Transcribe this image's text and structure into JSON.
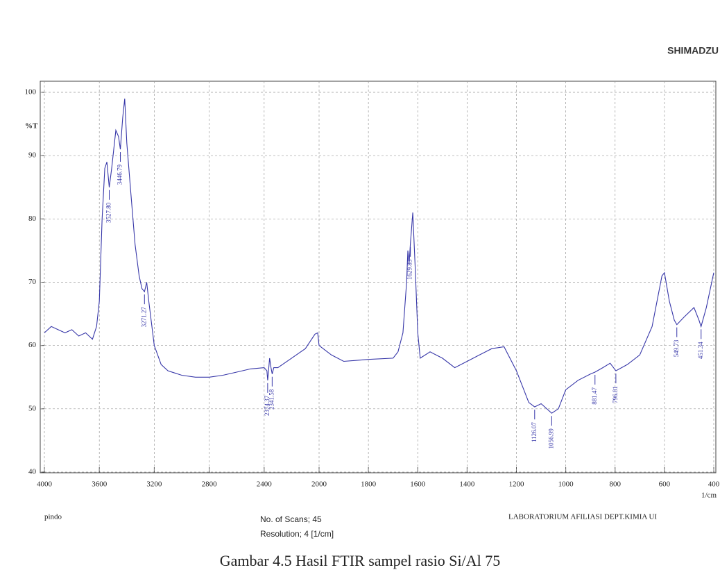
{
  "chart_data": {
    "type": "line",
    "brand": "SHIMADZU",
    "ylabel": "%T",
    "xlabel": "1/cm",
    "xlim": [
      4000,
      400
    ],
    "x_scale_break": 2000,
    "xticks": [
      4000,
      3600,
      3200,
      2800,
      2400,
      2000,
      1800,
      1600,
      1400,
      1200,
      1000,
      800,
      600,
      400
    ],
    "ylim": [
      40,
      100
    ],
    "yticks": [
      40,
      50,
      60,
      70,
      80,
      90,
      100
    ],
    "grid": true,
    "series": [
      {
        "color": "#3636a8",
        "x": [
          4000,
          3950,
          3900,
          3850,
          3800,
          3750,
          3700,
          3650,
          3620,
          3600,
          3580,
          3560,
          3545,
          3527.8,
          3510,
          3480,
          3460,
          3446.79,
          3430,
          3415,
          3400,
          3370,
          3340,
          3310,
          3290,
          3271.27,
          3255,
          3240,
          3200,
          3150,
          3100,
          3000,
          2900,
          2800,
          2700,
          2600,
          2500,
          2400,
          2380,
          2374.37,
          2360,
          2350,
          2341.58,
          2330,
          2300,
          2200,
          2100,
          2030,
          2010,
          2000,
          1950,
          1900,
          1800,
          1700,
          1680,
          1660,
          1645,
          1640,
          1635,
          1629.83,
          1620,
          1610,
          1600,
          1590,
          1550,
          1500,
          1450,
          1400,
          1350,
          1300,
          1250,
          1200,
          1150,
          1126.07,
          1100,
          1056.99,
          1030,
          1000,
          950,
          900,
          881.47,
          850,
          820,
          796.81,
          750,
          700,
          650,
          610,
          600,
          580,
          560,
          549.73,
          520,
          480,
          460,
          451.34,
          430,
          400
        ],
        "values": [
          62,
          63,
          62.5,
          62,
          62.5,
          61.5,
          62,
          61,
          63,
          67,
          80,
          88,
          89,
          85,
          88,
          94,
          93,
          91,
          96,
          99,
          92,
          84,
          76,
          71,
          69,
          68.5,
          70,
          67,
          60,
          57,
          56,
          55.3,
          55,
          55,
          55.3,
          55.8,
          56.3,
          56.5,
          56,
          54.5,
          58,
          56.5,
          55.5,
          56.5,
          56.5,
          58,
          59.5,
          61.8,
          62,
          60,
          58.5,
          57.5,
          57.8,
          58,
          59,
          62,
          70,
          75,
          73,
          76,
          81,
          72,
          62,
          58,
          59,
          58,
          56.5,
          57.5,
          58.5,
          59.5,
          59.8,
          56,
          51,
          50.3,
          50.8,
          49.3,
          50,
          53,
          54.5,
          55.5,
          55.8,
          56.5,
          57.2,
          56,
          57,
          58.5,
          63,
          71,
          71.5,
          67,
          64,
          63.3,
          64.5,
          66,
          64,
          63,
          66,
          71.5
        ]
      }
    ],
    "annotations": [
      {
        "x": 3527.8,
        "y": 85,
        "label": "3527.80"
      },
      {
        "x": 3446.79,
        "y": 91,
        "label": "3446.79"
      },
      {
        "x": 3271.27,
        "y": 68.5,
        "label": "3271.27"
      },
      {
        "x": 2374.37,
        "y": 54.5,
        "label": "2374.37"
      },
      {
        "x": 2341.58,
        "y": 55.5,
        "label": "2341.58"
      },
      {
        "x": 1629.83,
        "y": 76,
        "label": "1629.83"
      },
      {
        "x": 1126.07,
        "y": 50.3,
        "label": "1126.07"
      },
      {
        "x": 1056.99,
        "y": 49.3,
        "label": "1056.99"
      },
      {
        "x": 881.47,
        "y": 55.8,
        "label": "881.47"
      },
      {
        "x": 796.81,
        "y": 56,
        "label": "796.81"
      },
      {
        "x": 549.73,
        "y": 63.3,
        "label": "549.73"
      },
      {
        "x": 451.34,
        "y": 63,
        "label": "451.34"
      }
    ],
    "footer_left": "pindo",
    "footer_scans": "No. of Scans; 45",
    "footer_resolution": "Resolution;  4 [1/cm]",
    "footer_lab": "LABORATORIUM AFILIASI DEPT.KIMIA UI",
    "caption": "Gambar 4.5 Hasil FTIR sampel rasio Si/Al 75"
  }
}
